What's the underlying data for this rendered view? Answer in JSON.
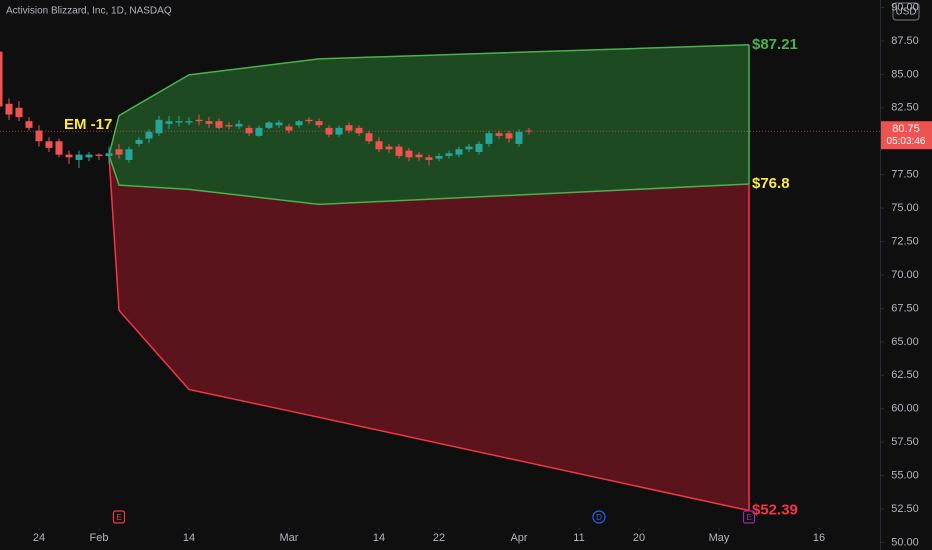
{
  "chart_data": {
    "type": "candlestick",
    "title": "Activision Blizzard, Inc, 1D, NASDAQ",
    "currency": "USD",
    "up_color": "#26a69a",
    "down_color": "#ef5350",
    "xlim": [
      -3.9,
      84.1
    ],
    "ylim": [
      49.44,
      90.56
    ],
    "xticks": [
      {
        "value": 0,
        "label": "24"
      },
      {
        "value": 6,
        "label": "Feb"
      },
      {
        "value": 15,
        "label": "14"
      },
      {
        "value": 25,
        "label": "Mar"
      },
      {
        "value": 34,
        "label": "14"
      },
      {
        "value": 40,
        "label": "22"
      },
      {
        "value": 48,
        "label": "Apr"
      },
      {
        "value": 54,
        "label": "11"
      },
      {
        "value": 60,
        "label": "20"
      },
      {
        "value": 68,
        "label": "May"
      },
      {
        "value": 78,
        "label": "16"
      }
    ],
    "yticks": [
      {
        "value": 90,
        "label": "90.00"
      },
      {
        "value": 87.5,
        "label": "87.50"
      },
      {
        "value": 85,
        "label": "85.00"
      },
      {
        "value": 82.5,
        "label": "82.50"
      },
      {
        "value": 80,
        "label": "80.00"
      },
      {
        "value": 77.5,
        "label": "77.50"
      },
      {
        "value": 75,
        "label": "75.00"
      },
      {
        "value": 72.5,
        "label": "72.50"
      },
      {
        "value": 70,
        "label": "70.00"
      },
      {
        "value": 67.5,
        "label": "67.50"
      },
      {
        "value": 65,
        "label": "65.00"
      },
      {
        "value": 62.5,
        "label": "62.50"
      },
      {
        "value": 60,
        "label": "60.00"
      },
      {
        "value": 57.5,
        "label": "57.50"
      },
      {
        "value": 55,
        "label": "55.00"
      },
      {
        "value": 52.5,
        "label": "52.50"
      },
      {
        "value": 50,
        "label": "50.00"
      }
    ],
    "x": [
      -4,
      -3,
      -2,
      -1,
      0,
      1,
      2,
      3,
      4,
      5,
      6,
      7,
      8,
      9,
      10,
      11,
      12,
      13,
      14,
      15,
      16,
      17,
      18,
      19,
      20,
      21,
      22,
      23,
      24,
      25,
      26,
      27,
      28,
      29,
      30,
      31,
      32,
      33,
      34,
      35,
      36,
      37,
      38,
      39,
      40,
      41,
      42,
      43,
      44,
      45,
      46,
      47,
      48,
      49
    ],
    "open": [
      86.7,
      82.8,
      82.5,
      81.5,
      80.8,
      80.0,
      80.0,
      79.0,
      78.6,
      78.8,
      79.0,
      78.9,
      79.4,
      78.6,
      79.8,
      80.2,
      80.6,
      81.3,
      81.4,
      81.4,
      81.6,
      81.5,
      81.5,
      81.2,
      81.1,
      81.0,
      80.4,
      81.0,
      81.2,
      81.1,
      81.2,
      81.6,
      81.5,
      81.0,
      80.5,
      81.2,
      81.0,
      80.6,
      80.0,
      79.6,
      79.6,
      79.3,
      79.0,
      78.8,
      78.7,
      78.9,
      79.0,
      79.4,
      79.2,
      79.8,
      80.6,
      80.6,
      79.8,
      80.8
    ],
    "high": [
      87.0,
      83.2,
      83.0,
      81.8,
      81.2,
      80.3,
      80.2,
      79.3,
      79.3,
      79.2,
      79.1,
      79.6,
      79.8,
      79.6,
      80.3,
      80.9,
      81.9,
      81.9,
      81.9,
      81.8,
      82.0,
      81.8,
      81.7,
      81.4,
      81.6,
      81.2,
      81.2,
      81.5,
      81.6,
      81.3,
      81.6,
      81.8,
      81.7,
      81.2,
      81.2,
      81.4,
      81.2,
      80.8,
      80.3,
      79.8,
      79.8,
      79.5,
      79.2,
      79.0,
      79.1,
      79.3,
      79.6,
      79.8,
      80.0,
      80.8,
      80.8,
      80.8,
      80.9,
      81.0
    ],
    "low": [
      82.0,
      81.6,
      81.5,
      80.8,
      79.6,
      79.2,
      78.8,
      78.3,
      78.0,
      78.5,
      78.6,
      78.3,
      78.7,
      78.4,
      79.6,
      79.9,
      80.4,
      80.9,
      81.1,
      81.2,
      81.2,
      81.0,
      80.9,
      80.9,
      80.9,
      80.4,
      80.3,
      80.9,
      81.0,
      80.6,
      81.0,
      81.3,
      81.0,
      80.3,
      80.3,
      80.6,
      80.4,
      79.8,
      79.2,
      79.1,
      78.7,
      78.5,
      78.5,
      78.2,
      78.5,
      78.7,
      78.8,
      79.2,
      79.0,
      79.6,
      80.2,
      79.9,
      79.6,
      80.5
    ],
    "close": [
      82.6,
      82.0,
      81.8,
      81.0,
      80.0,
      79.5,
      79.0,
      78.8,
      79.0,
      79.0,
      78.9,
      79.1,
      79.0,
      79.4,
      80.1,
      80.7,
      81.6,
      81.5,
      81.5,
      81.5,
      81.5,
      81.3,
      81.0,
      81.1,
      81.3,
      80.6,
      81.0,
      81.4,
      81.4,
      80.8,
      81.5,
      81.5,
      81.2,
      80.5,
      81.0,
      80.8,
      80.6,
      80.0,
      79.4,
      79.4,
      78.9,
      78.8,
      78.8,
      78.6,
      78.9,
      79.1,
      79.4,
      79.6,
      79.8,
      80.6,
      80.4,
      80.2,
      80.7,
      80.75
    ],
    "last_price": 80.75,
    "countdown": "05:03:46",
    "bands": {
      "x": [
        7,
        8,
        15,
        28,
        71
      ],
      "upper": [
        78.96,
        81.92,
        84.96,
        86.16,
        87.21
      ],
      "mid": [
        78.96,
        76.72,
        76.4,
        75.28,
        76.8
      ],
      "lower": [
        78.96,
        67.36,
        61.44,
        59.36,
        52.39
      ],
      "upper_color": "#4caf50",
      "upper_fill": "#1d4a20",
      "lower_color": "#f23645",
      "lower_fill": "#5b141b"
    },
    "annotations": [
      {
        "text": "EM -17",
        "x": 2.5,
        "y": 81.2,
        "color": "#ffeb3b"
      },
      {
        "text": "$87.21",
        "x": 71.3,
        "y": 87.21,
        "color": "#4caf50"
      },
      {
        "text": "$76.8",
        "x": 71.3,
        "y": 76.8,
        "color": "#ffeb3b"
      },
      {
        "text": "$52.39",
        "x": 71.3,
        "y": 52.39,
        "color": "#f23645"
      }
    ],
    "events": [
      {
        "label": "E",
        "x": 8,
        "color": "#f23645"
      },
      {
        "label": "D",
        "x": 56,
        "color": "#2962ff"
      },
      {
        "label": "E",
        "x": 71,
        "color": "#9c27b0"
      }
    ]
  }
}
